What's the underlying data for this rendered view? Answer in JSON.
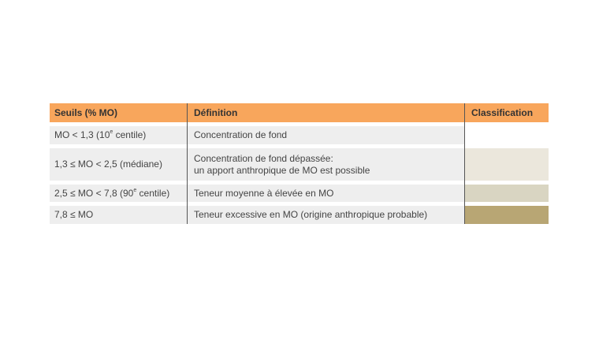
{
  "table": {
    "headers": {
      "thresholds": "Seuils (% MO)",
      "definition": "Définition",
      "classification": "Classification"
    },
    "rows": [
      {
        "threshold_pre": "MO < 1,3 (10",
        "threshold_sup": "e",
        "threshold_post": " centile)",
        "definition_line1": "Concentration de fond",
        "definition_line2": "",
        "swatch_color": "#ffffff"
      },
      {
        "threshold_pre": "1,3 ≤ MO < 2,5 (médiane)",
        "threshold_sup": "",
        "threshold_post": "",
        "definition_line1": "Concentration de fond dépassée:",
        "definition_line2": "un apport anthropique de MO est possible",
        "swatch_color": "#ebe7dc"
      },
      {
        "threshold_pre": "2,5 ≤ MO < 7,8 (90",
        "threshold_sup": "e",
        "threshold_post": " centile)",
        "definition_line1": "Teneur moyenne à élevée en MO",
        "definition_line2": "",
        "swatch_color": "#d9d5c2"
      },
      {
        "threshold_pre": "7,8 ≤ MO",
        "threshold_sup": "",
        "threshold_post": "",
        "definition_line1": "Teneur excessive en MO (origine anthropique probable)",
        "definition_line2": "",
        "swatch_color": "#b8a674"
      }
    ]
  }
}
